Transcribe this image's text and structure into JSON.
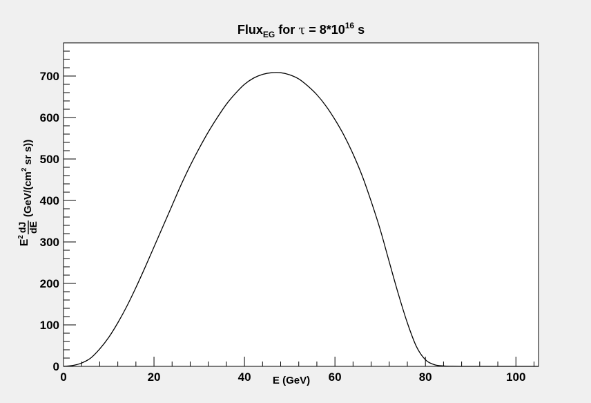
{
  "chart_data": {
    "type": "line",
    "title": {
      "prefix": "Flux",
      "prefix_sub": "EG",
      "middle": " for ",
      "symbol": "τ",
      "eq": " = 8*10",
      "exp": "16",
      "unit": " s"
    },
    "xlabel": "E (GeV)",
    "ylabel": {
      "e2": "E",
      "e2_sup": "2",
      "frac_num": "dJ",
      "frac_den": "dE",
      "units_a": "(GeV/(cm",
      "units_sup": "2",
      "units_b": " sr s))"
    },
    "xlim": [
      0,
      105
    ],
    "ylim": [
      0,
      780
    ],
    "xticks": [
      0,
      20,
      40,
      60,
      80,
      100
    ],
    "xtick_labels": [
      "0",
      "20",
      "40",
      "60",
      "80",
      "100"
    ],
    "yticks": [
      0,
      100,
      200,
      300,
      400,
      500,
      600,
      700
    ],
    "ytick_labels": [
      "0",
      "100",
      "200",
      "300",
      "400",
      "500",
      "600",
      "700"
    ],
    "grid": false,
    "series": [
      {
        "color": "#000000",
        "x": [
          0,
          2,
          4,
          6,
          8,
          10,
          12,
          14,
          16,
          18,
          20,
          22,
          24,
          26,
          28,
          30,
          32,
          34,
          36,
          38,
          40,
          42,
          44,
          46,
          48,
          50,
          52,
          54,
          56,
          58,
          60,
          62,
          64,
          66,
          68,
          70,
          72,
          74,
          76,
          78,
          80,
          82,
          84,
          86,
          88,
          90,
          92,
          95,
          100,
          105
        ],
        "y": [
          0,
          2,
          8,
          20,
          42,
          70,
          105,
          145,
          190,
          238,
          288,
          338,
          388,
          438,
          484,
          526,
          565,
          600,
          632,
          658,
          680,
          695,
          704,
          708,
          708,
          703,
          693,
          676,
          655,
          628,
          595,
          557,
          512,
          460,
          398,
          330,
          252,
          175,
          105,
          48,
          16,
          4,
          1,
          0.3,
          0,
          0,
          0,
          0,
          0,
          0
        ]
      }
    ]
  }
}
